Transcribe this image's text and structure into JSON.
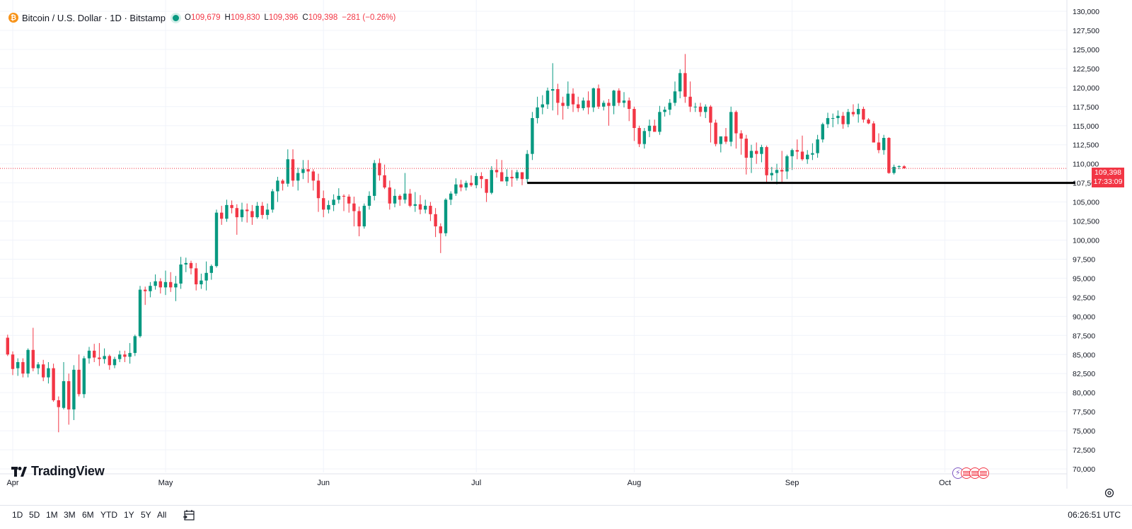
{
  "header": {
    "symbol": "Bitcoin / U.S. Dollar · 1D · Bitstamp",
    "icon_glyph": "₿",
    "ohlc": {
      "o_label": "O",
      "o_value": "109,679",
      "h_label": "H",
      "h_value": "109,830",
      "l_label": "L",
      "l_value": "109,396",
      "c_label": "C",
      "c_value": "109,398",
      "change": "−281 (−0.26%)"
    }
  },
  "price_tag": {
    "price": "109,398",
    "countdown": "17:33:09"
  },
  "brand": {
    "name": "TradingView"
  },
  "bottom_bar": {
    "ranges": [
      "1D",
      "5D",
      "1M",
      "3M",
      "6M",
      "YTD",
      "1Y",
      "5Y",
      "All"
    ],
    "time": "06:26:51 UTC"
  },
  "colors": {
    "up": "#089981",
    "down": "#f23645",
    "grid": "#f0f3fa",
    "axis_text": "#131722",
    "support_line": "#000000"
  },
  "chart_data": {
    "type": "candlestick",
    "title": "Bitcoin / U.S. Dollar · 1D · Bitstamp",
    "ylim": [
      70000,
      130000
    ],
    "y_ticks": [
      {
        "value": 130000,
        "label": "130,000"
      },
      {
        "value": 127500,
        "label": "127,500"
      },
      {
        "value": 125000,
        "label": "125,000"
      },
      {
        "value": 122500,
        "label": "122,500"
      },
      {
        "value": 120000,
        "label": "120,000"
      },
      {
        "value": 117500,
        "label": "117,500"
      },
      {
        "value": 115000,
        "label": "115,000"
      },
      {
        "value": 112500,
        "label": "112,500"
      },
      {
        "value": 110000,
        "label": "110,000"
      },
      {
        "value": 107500,
        "label": "107,500"
      },
      {
        "value": 105000,
        "label": "105,000"
      },
      {
        "value": 102500,
        "label": "102,500"
      },
      {
        "value": 100000,
        "label": "100,000"
      },
      {
        "value": 97500,
        "label": "97,500"
      },
      {
        "value": 95000,
        "label": "95,000"
      },
      {
        "value": 92500,
        "label": "92,500"
      },
      {
        "value": 90000,
        "label": "90,000"
      },
      {
        "value": 87500,
        "label": "87,500"
      },
      {
        "value": 85000,
        "label": "85,000"
      },
      {
        "value": 82500,
        "label": "82,500"
      },
      {
        "value": 80000,
        "label": "80,000"
      },
      {
        "value": 77500,
        "label": "77,500"
      },
      {
        "value": 75000,
        "label": "75,000"
      },
      {
        "value": 72500,
        "label": "72,500"
      },
      {
        "value": 70000,
        "label": "70,000"
      }
    ],
    "x_ticks": [
      {
        "index": 1,
        "label": "Apr"
      },
      {
        "index": 31,
        "label": "May"
      },
      {
        "index": 62,
        "label": "Jun"
      },
      {
        "index": 92,
        "label": "Jul"
      },
      {
        "index": 123,
        "label": "Aug"
      },
      {
        "index": 154,
        "label": "Sep"
      },
      {
        "index": 184,
        "label": "Oct"
      }
    ],
    "last_price": 109398,
    "support_level": 107500,
    "support_from_index": 102,
    "candles": [
      [
        87200,
        87600,
        84800,
        85000
      ],
      [
        85000,
        85400,
        82300,
        83100
      ],
      [
        83200,
        84500,
        82200,
        84000
      ],
      [
        84000,
        84500,
        82000,
        82500
      ],
      [
        82500,
        85800,
        82000,
        85600
      ],
      [
        85600,
        88500,
        82800,
        83200
      ],
      [
        83200,
        84000,
        82400,
        83700
      ],
      [
        83700,
        84300,
        81500,
        82000
      ],
      [
        82000,
        84000,
        81200,
        83200
      ],
      [
        83200,
        83800,
        78800,
        79000
      ],
      [
        79000,
        79500,
        74800,
        78100
      ],
      [
        78000,
        84000,
        77800,
        81500
      ],
      [
        81500,
        82500,
        75800,
        77800
      ],
      [
        77800,
        83600,
        76400,
        83000
      ],
      [
        83000,
        85000,
        79500,
        79800
      ],
      [
        79800,
        84800,
        79300,
        84500
      ],
      [
        84500,
        86000,
        83800,
        85500
      ],
      [
        85500,
        86400,
        84000,
        84600
      ],
      [
        84600,
        86500,
        83500,
        84400
      ],
      [
        84400,
        85800,
        83800,
        84800
      ],
      [
        84800,
        85000,
        83000,
        83600
      ],
      [
        83600,
        84700,
        83200,
        84400
      ],
      [
        84400,
        85500,
        84000,
        85000
      ],
      [
        85000,
        85500,
        84000,
        84700
      ],
      [
        84700,
        86500,
        83800,
        85200
      ],
      [
        85200,
        87600,
        84800,
        87400
      ],
      [
        87400,
        94000,
        87200,
        93500
      ],
      [
        93500,
        93900,
        91500,
        93300
      ],
      [
        93300,
        94500,
        92500,
        94000
      ],
      [
        94000,
        95500,
        93500,
        94600
      ],
      [
        94600,
        95000,
        93000,
        93800
      ],
      [
        93800,
        96000,
        92800,
        94500
      ],
      [
        94500,
        95800,
        93200,
        93800
      ],
      [
        93800,
        95300,
        92000,
        94300
      ],
      [
        94300,
        97800,
        93600,
        96800
      ],
      [
        96800,
        97700,
        95800,
        97000
      ],
      [
        97000,
        97300,
        95500,
        96300
      ],
      [
        96300,
        97000,
        93400,
        94200
      ],
      [
        94200,
        95600,
        93600,
        94700
      ],
      [
        94700,
        97200,
        93400,
        95700
      ],
      [
        95700,
        96800,
        94800,
        96600
      ],
      [
        96600,
        104000,
        96400,
        103600
      ],
      [
        103600,
        104500,
        102000,
        102800
      ],
      [
        102800,
        105300,
        102400,
        104600
      ],
      [
        104600,
        105200,
        103500,
        104200
      ],
      [
        104200,
        104700,
        100700,
        103000
      ],
      [
        103000,
        104900,
        102400,
        104000
      ],
      [
        104000,
        104800,
        102300,
        103800
      ],
      [
        103800,
        104600,
        102000,
        103000
      ],
      [
        103000,
        105000,
        102800,
        104500
      ],
      [
        104500,
        105000,
        102800,
        103300
      ],
      [
        103300,
        104800,
        102700,
        104000
      ],
      [
        104000,
        106700,
        103600,
        106400
      ],
      [
        106400,
        108300,
        105000,
        107800
      ],
      [
        107800,
        108000,
        106500,
        107400
      ],
      [
        107400,
        111900,
        107000,
        110600
      ],
      [
        110600,
        111900,
        107000,
        107800
      ],
      [
        107800,
        109500,
        106500,
        108800
      ],
      [
        108800,
        110500,
        108000,
        109300
      ],
      [
        109300,
        110500,
        107500,
        109000
      ],
      [
        109000,
        109300,
        106500,
        107800
      ],
      [
        107800,
        108700,
        103700,
        105500
      ],
      [
        105500,
        106500,
        103000,
        104000
      ],
      [
        104000,
        105200,
        103500,
        104600
      ],
      [
        104600,
        106000,
        103800,
        105300
      ],
      [
        105300,
        106800,
        104800,
        105800
      ],
      [
        105800,
        106000,
        103800,
        105700
      ],
      [
        105700,
        106000,
        103600,
        104800
      ],
      [
        104800,
        105700,
        101800,
        103800
      ],
      [
        103800,
        104400,
        100500,
        101800
      ],
      [
        101800,
        104800,
        101500,
        104500
      ],
      [
        104500,
        106400,
        104000,
        105800
      ],
      [
        105800,
        110500,
        105200,
        110100
      ],
      [
        110100,
        110700,
        107800,
        108500
      ],
      [
        108500,
        109900,
        106700,
        106900
      ],
      [
        106900,
        107800,
        104000,
        104800
      ],
      [
        104800,
        106700,
        104300,
        105800
      ],
      [
        105800,
        106000,
        104500,
        105300
      ],
      [
        105300,
        108800,
        104800,
        106100
      ],
      [
        106100,
        106700,
        104300,
        104500
      ],
      [
        104500,
        106300,
        103700,
        104700
      ],
      [
        104700,
        105900,
        103400,
        104000
      ],
      [
        104000,
        105300,
        103500,
        104500
      ],
      [
        104500,
        105000,
        102500,
        103400
      ],
      [
        103400,
        104200,
        100400,
        101800
      ],
      [
        101800,
        102200,
        98300,
        100900
      ],
      [
        100900,
        105500,
        100500,
        105300
      ],
      [
        105300,
        106400,
        104600,
        106100
      ],
      [
        106100,
        108100,
        105800,
        107300
      ],
      [
        107300,
        107900,
        106400,
        106900
      ],
      [
        106900,
        107800,
        106500,
        107500
      ],
      [
        107500,
        108500,
        107000,
        107200
      ],
      [
        107200,
        108800,
        106800,
        108400
      ],
      [
        108400,
        108900,
        106800,
        108000
      ],
      [
        108000,
        108000,
        105000,
        106200
      ],
      [
        106200,
        109700,
        106000,
        109200
      ],
      [
        109200,
        110600,
        108200,
        108900
      ],
      [
        108900,
        110500,
        107900,
        107700
      ],
      [
        107700,
        109300,
        107100,
        108300
      ],
      [
        108300,
        109200,
        107000,
        108100
      ],
      [
        108100,
        109200,
        107800,
        108900
      ],
      [
        108900,
        108800,
        107200,
        108000
      ],
      [
        108000,
        111800,
        107500,
        111300
      ],
      [
        111300,
        116800,
        110500,
        116000
      ],
      [
        116000,
        118800,
        115300,
        117400
      ],
      [
        117400,
        119000,
        116500,
        117800
      ],
      [
        117800,
        120000,
        117200,
        119600
      ],
      [
        119600,
        123200,
        117000,
        119800
      ],
      [
        119800,
        120500,
        116400,
        118000
      ],
      [
        118000,
        118800,
        115800,
        117600
      ],
      [
        117600,
        120800,
        117200,
        119200
      ],
      [
        119200,
        119900,
        116800,
        117800
      ],
      [
        117800,
        118800,
        116800,
        117300
      ],
      [
        117300,
        118700,
        117000,
        118300
      ],
      [
        118300,
        119500,
        116500,
        117400
      ],
      [
        117400,
        120000,
        116800,
        119900
      ],
      [
        119900,
        120400,
        117200,
        117500
      ],
      [
        117500,
        118300,
        117000,
        118000
      ],
      [
        118000,
        118500,
        115000,
        117600
      ],
      [
        117600,
        119700,
        116500,
        119600
      ],
      [
        119600,
        119900,
        117600,
        118000
      ],
      [
        118000,
        119400,
        117400,
        118300
      ],
      [
        118300,
        118700,
        115600,
        117200
      ],
      [
        117200,
        117500,
        113000,
        114700
      ],
      [
        114700,
        115000,
        112200,
        112600
      ],
      [
        112600,
        114700,
        112000,
        114300
      ],
      [
        114300,
        115800,
        113500,
        115000
      ],
      [
        115000,
        115800,
        114300,
        114200
      ],
      [
        114200,
        117600,
        113800,
        116800
      ],
      [
        116800,
        117500,
        116200,
        117100
      ],
      [
        117100,
        118500,
        116400,
        118000
      ],
      [
        118000,
        120800,
        117600,
        119500
      ],
      [
        119500,
        122400,
        118600,
        121900
      ],
      [
        121900,
        124400,
        118000,
        118800
      ],
      [
        118800,
        120800,
        116800,
        117500
      ],
      [
        117500,
        118000,
        116800,
        117500
      ],
      [
        117500,
        118000,
        116200,
        116800
      ],
      [
        116800,
        117800,
        116000,
        117500
      ],
      [
        117500,
        117700,
        112800,
        115400
      ],
      [
        115400,
        115800,
        112300,
        112600
      ],
      [
        112600,
        113500,
        111500,
        113600
      ],
      [
        113600,
        114700,
        112600,
        112900
      ],
      [
        112900,
        117500,
        112300,
        116800
      ],
      [
        116800,
        117000,
        112000,
        114000
      ],
      [
        114000,
        114400,
        111200,
        113300
      ],
      [
        113300,
        113800,
        108600,
        110800
      ],
      [
        110800,
        112500,
        108800,
        111700
      ],
      [
        111700,
        112800,
        110000,
        111300
      ],
      [
        111300,
        112500,
        110200,
        112200
      ],
      [
        112200,
        112400,
        107500,
        108500
      ],
      [
        108500,
        109600,
        107800,
        108800
      ],
      [
        108800,
        110000,
        107300,
        109200
      ],
      [
        109200,
        111700,
        107500,
        109000
      ],
      [
        109000,
        111200,
        108000,
        111000
      ],
      [
        111000,
        112000,
        109200,
        111800
      ],
      [
        111800,
        113200,
        110600,
        111600
      ],
      [
        111600,
        113700,
        110400,
        110600
      ],
      [
        110600,
        111800,
        110000,
        111200
      ],
      [
        111200,
        112700,
        110500,
        111400
      ],
      [
        111400,
        113800,
        110800,
        113200
      ],
      [
        113200,
        115400,
        112800,
        115200
      ],
      [
        115200,
        116700,
        114700,
        116000
      ],
      [
        116000,
        116600,
        114800,
        116000
      ],
      [
        116000,
        117000,
        115200,
        116300
      ],
      [
        116300,
        116800,
        114600,
        115200
      ],
      [
        115200,
        117200,
        114800,
        116800
      ],
      [
        116800,
        117800,
        116200,
        116500
      ],
      [
        116500,
        117900,
        115400,
        117200
      ],
      [
        117200,
        117500,
        115400,
        115800
      ],
      [
        115800,
        116000,
        115200,
        115300
      ],
      [
        115300,
        115600,
        112800,
        112800
      ],
      [
        112800,
        114000,
        111400,
        111800
      ],
      [
        111800,
        113800,
        111200,
        113400
      ],
      [
        113400,
        113500,
        108700,
        108800
      ],
      [
        108800,
        109900,
        108600,
        109600
      ],
      [
        109600,
        109800,
        109300,
        109700
      ],
      [
        109679,
        109830,
        109396,
        109398
      ]
    ]
  }
}
